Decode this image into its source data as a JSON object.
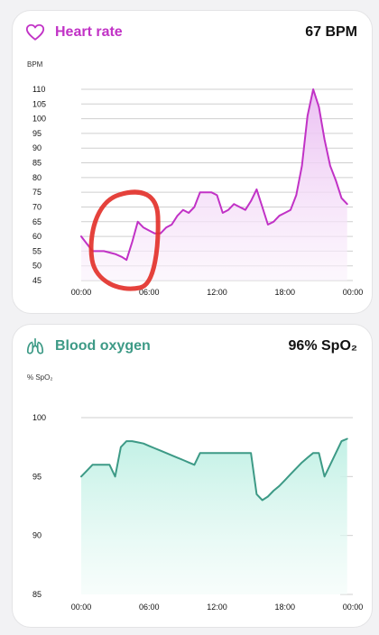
{
  "heart_rate": {
    "title": "Heart rate",
    "value": "67 BPM",
    "unit": "BPM",
    "icon": "heart-icon",
    "accent": "#c132c6",
    "fill_top": "#f0c8f5",
    "y_ticks": [
      "110",
      "105",
      "100",
      "95",
      "90",
      "85",
      "80",
      "75",
      "70",
      "65",
      "60",
      "55",
      "50",
      "45"
    ],
    "x_ticks": [
      "00:00",
      "06:00",
      "12:00",
      "18:00",
      "00:00"
    ],
    "annotation": "red-circle-highlight"
  },
  "blood_oxygen": {
    "title": "Blood oxygen",
    "value": "96% SpO₂",
    "unit": "% SpO₂",
    "icon": "lungs-icon",
    "accent": "#3d9a86",
    "fill_top": "#c4f2e7",
    "y_ticks": [
      "100",
      "95",
      "90",
      "85"
    ],
    "x_ticks": [
      "00:00",
      "06:00",
      "12:00",
      "18:00",
      "00:00"
    ]
  },
  "chart_data": [
    {
      "type": "area",
      "x": [
        0,
        1,
        2,
        3,
        3.6,
        4,
        4.5,
        5,
        5.5,
        6,
        6.5,
        7,
        7.5,
        8,
        8.5,
        9,
        9.5,
        10,
        10.5,
        11,
        11.5,
        12,
        12.5,
        13,
        13.5,
        14,
        14.5,
        15,
        15.5,
        16,
        16.5,
        17,
        17.5,
        18,
        18.5,
        19,
        19.5,
        20,
        20.5,
        21,
        21.5,
        22,
        22.5,
        23,
        23.5
      ],
      "series": [
        {
          "values": [
            60,
            55,
            55,
            54,
            53,
            52,
            58,
            65,
            63,
            62,
            61,
            61,
            63,
            64,
            67,
            69,
            68,
            70,
            75,
            75,
            75,
            74,
            68,
            69,
            71,
            70,
            69,
            72,
            76,
            70,
            64,
            65,
            67,
            68,
            69,
            74,
            84,
            101,
            110,
            104,
            93,
            84,
            79,
            73,
            71
          ]
        }
      ],
      "ylabel": "BPM",
      "ylim": [
        45,
        110
      ]
    },
    {
      "type": "area",
      "x": [
        0,
        0.5,
        1,
        1.5,
        2,
        2.5,
        3,
        3.5,
        4,
        4.5,
        5,
        5.5,
        6,
        6.5,
        7,
        7.5,
        8,
        8.5,
        9,
        9.5,
        10,
        10.5,
        11,
        11.5,
        12,
        12.5,
        13,
        13.5,
        14,
        14.5,
        15,
        15.5,
        16,
        16.5,
        17,
        17.5,
        18,
        18.5,
        19,
        19.5,
        20,
        20.5,
        21,
        21.5,
        22,
        22.5,
        23,
        23.5
      ],
      "series": [
        {
          "values": [
            95,
            95.5,
            96,
            96,
            96,
            96,
            95,
            97.5,
            98,
            98,
            97.9,
            97.8,
            97.6,
            97.4,
            97.2,
            97,
            96.8,
            96.6,
            96.4,
            96.2,
            96,
            97,
            97,
            97,
            97,
            97,
            97,
            97,
            97,
            97,
            97,
            93.5,
            93,
            93.3,
            93.8,
            94.2,
            94.7,
            95.2,
            95.7,
            96.2,
            96.6,
            97,
            97,
            95,
            96,
            97,
            98,
            98.2
          ]
        }
      ],
      "ylabel": "% SpO₂",
      "ylim": [
        85,
        100
      ]
    }
  ]
}
